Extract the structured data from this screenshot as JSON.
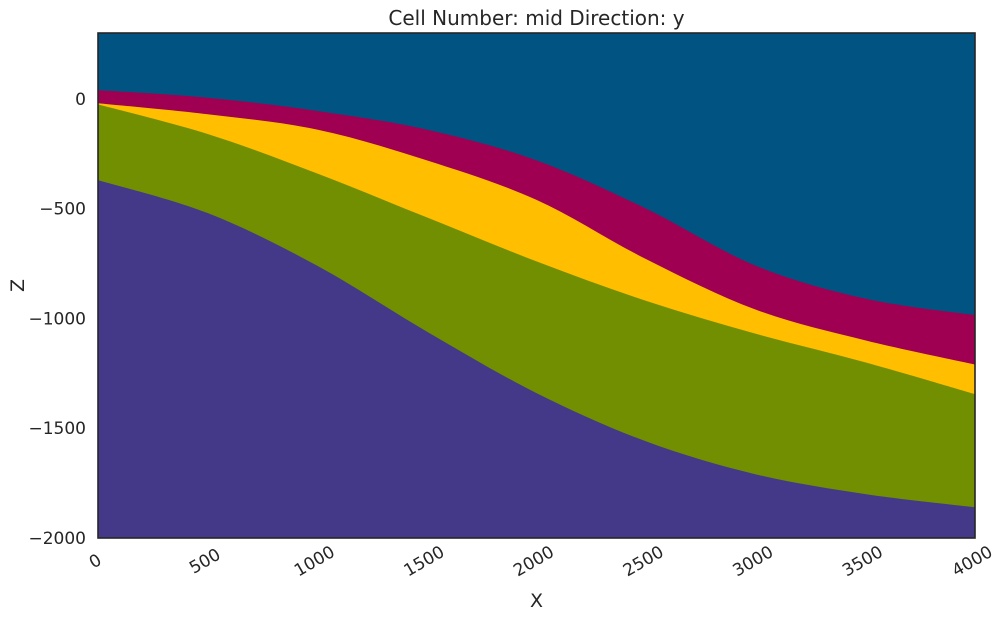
{
  "chart_data": {
    "type": "area",
    "title": "Cell Number: mid Direction: y",
    "xlabel": "X",
    "ylabel": "Z",
    "xlim": [
      0,
      4000
    ],
    "ylim": [
      -2000,
      300
    ],
    "x_ticks": [
      0,
      500,
      1000,
      1500,
      2000,
      2500,
      3000,
      3500,
      4000
    ],
    "x_tick_labels": [
      "0",
      "500",
      "1000",
      "1500",
      "2000",
      "2500",
      "3000",
      "3500",
      "4000"
    ],
    "y_ticks": [
      0,
      -500,
      -1000,
      -1500,
      -2000
    ],
    "y_tick_labels": [
      "0",
      "−500",
      "−1000",
      "−1500",
      "−2000"
    ],
    "grid": false,
    "x": [
      0,
      500,
      1000,
      1500,
      2000,
      2500,
      3000,
      3500,
      4000
    ],
    "series": [
      {
        "color": "#015482",
        "boundary": [
          300,
          300,
          300,
          300,
          300,
          300,
          300,
          300,
          300
        ]
      },
      {
        "color": "#9f0052",
        "boundary": [
          40,
          5,
          -55,
          -140,
          -280,
          -500,
          -760,
          -910,
          -985
        ]
      },
      {
        "color": "#ffbe00",
        "boundary": [
          -20,
          -70,
          -140,
          -280,
          -460,
          -730,
          -960,
          -1100,
          -1210
        ]
      },
      {
        "color": "#728f02",
        "boundary": [
          -25,
          -160,
          -340,
          -540,
          -740,
          -920,
          -1070,
          -1200,
          -1345
        ]
      },
      {
        "color": "#443988",
        "boundary": [
          -370,
          -520,
          -760,
          -1060,
          -1340,
          -1560,
          -1710,
          -1800,
          -1860
        ]
      }
    ]
  }
}
